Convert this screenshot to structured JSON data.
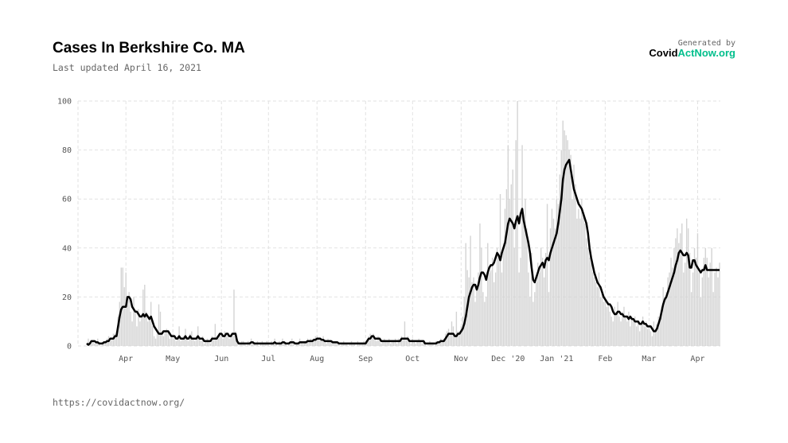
{
  "header": {
    "title": "Cases In Berkshire Co. MA",
    "subtitle": "Last updated April 16, 2021",
    "generated_by": "Generated by",
    "logo": [
      "Covid",
      "ActNow.org"
    ]
  },
  "footer": {
    "url": "https://covidactnow.org/"
  },
  "chart_data": {
    "type": "bar",
    "grid": true,
    "categories": [
      null,
      null,
      null,
      null,
      null,
      null,
      null,
      null,
      null,
      null,
      null,
      null,
      null,
      null,
      null,
      null,
      null,
      null,
      null,
      null,
      null,
      null,
      null,
      null,
      null,
      "Apr",
      null,
      null,
      null,
      null,
      null,
      null,
      null,
      null,
      null,
      null,
      null,
      null,
      null,
      null,
      null,
      null,
      null,
      null,
      null,
      null,
      null,
      null,
      null,
      null,
      null,
      null,
      null,
      null,
      null,
      "May",
      null,
      null,
      null,
      null,
      null,
      null,
      null,
      null,
      null,
      null,
      null,
      null,
      null,
      null,
      null,
      null,
      null,
      null,
      null,
      null,
      null,
      null,
      null,
      null,
      null,
      null,
      null,
      null,
      null,
      null,
      "Jun",
      null,
      null,
      null,
      null,
      null,
      null,
      null,
      null,
      null,
      null,
      null,
      null,
      null,
      null,
      null,
      null,
      null,
      null,
      null,
      null,
      null,
      null,
      null,
      null,
      null,
      null,
      null,
      null,
      null,
      "Jul",
      null,
      null,
      null,
      null,
      null,
      null,
      null,
      null,
      null,
      null,
      null,
      null,
      null,
      null,
      null,
      null,
      null,
      null,
      null,
      null,
      null,
      null,
      null,
      null,
      null,
      null,
      null,
      null,
      null,
      null,
      "Aug",
      null,
      null,
      null,
      null,
      null,
      null,
      null,
      null,
      null,
      null,
      null,
      null,
      null,
      null,
      null,
      null,
      null,
      null,
      null,
      null,
      null,
      null,
      null,
      null,
      null,
      null,
      null,
      null,
      null,
      null,
      "Sep",
      null,
      null,
      null,
      null,
      null,
      null,
      null,
      null,
      null,
      null,
      null,
      null,
      null,
      null,
      null,
      null,
      null,
      null,
      null,
      null,
      null,
      null,
      null,
      null,
      null,
      null,
      null,
      null,
      null,
      "Oct",
      null,
      null,
      null,
      null,
      null,
      null,
      null,
      null,
      null,
      null,
      null,
      null,
      null,
      null,
      null,
      null,
      null,
      null,
      null,
      null,
      null,
      null,
      null,
      null,
      null,
      null,
      null,
      null,
      null,
      null,
      "Nov",
      null,
      null,
      null,
      null,
      null,
      null,
      null,
      null,
      null,
      null,
      null,
      null,
      null,
      null,
      null,
      null,
      null,
      null,
      null,
      null,
      null,
      null,
      null,
      null,
      null,
      null,
      null,
      null,
      null,
      "Dec '20",
      null,
      null,
      null,
      null,
      null,
      null,
      null,
      null,
      null,
      null,
      null,
      null,
      null,
      null,
      null,
      null,
      null,
      null,
      null,
      null,
      null,
      null,
      null,
      null,
      null,
      null,
      null,
      null,
      null,
      null,
      "Jan '21",
      null,
      null,
      null,
      null,
      null,
      null,
      null,
      null,
      null,
      null,
      null,
      null,
      null,
      null,
      null,
      null,
      null,
      null,
      null,
      null,
      null,
      null,
      null,
      null,
      null,
      null,
      null,
      null,
      null,
      null,
      "Feb",
      null,
      null,
      null,
      null,
      null,
      null,
      null,
      null,
      null,
      null,
      null,
      null,
      null,
      null,
      null,
      null,
      null,
      null,
      null,
      null,
      null,
      null,
      null,
      null,
      null,
      null,
      null,
      "Mar",
      null,
      null,
      null,
      null,
      null,
      null,
      null,
      null,
      null,
      null,
      null,
      null,
      null,
      null,
      null,
      null,
      null,
      null,
      null,
      null,
      null,
      null,
      null,
      null,
      null,
      null,
      null,
      null,
      null,
      null,
      "Apr",
      null,
      null,
      null,
      null,
      null,
      null,
      null,
      null,
      null,
      null,
      null,
      null,
      null,
      null
    ],
    "ylim": [
      0,
      100
    ],
    "yticks": [
      0,
      20,
      40,
      60,
      80,
      100
    ],
    "series": [
      {
        "color": "#d3d3d3",
        "values": [
          0,
          3,
          1,
          1,
          2,
          1,
          2,
          3,
          1,
          0,
          1,
          2,
          1,
          3,
          4,
          2,
          3,
          5,
          5,
          6,
          12,
          18,
          32,
          32,
          24,
          30,
          18,
          22,
          14,
          10,
          20,
          14,
          8,
          15,
          10,
          12,
          23,
          25,
          14,
          10,
          12,
          18,
          8,
          4,
          3,
          5,
          17,
          14,
          6,
          4,
          6,
          7,
          6,
          3,
          4,
          5,
          3,
          2,
          4,
          8,
          2,
          3,
          4,
          7,
          3,
          2,
          5,
          6,
          3,
          2,
          4,
          8,
          3,
          2,
          4,
          1,
          2,
          3,
          2,
          1,
          4,
          3,
          9,
          4,
          3,
          5,
          4,
          3,
          6,
          4,
          5,
          3,
          5,
          4,
          23,
          6,
          3,
          0,
          1,
          2,
          2,
          1,
          0,
          2,
          1,
          3,
          2,
          1,
          1,
          2,
          0,
          1,
          2,
          1,
          1,
          2,
          1,
          0,
          2,
          1,
          3,
          1,
          0,
          2,
          1,
          3,
          2,
          1,
          0,
          1,
          2,
          3,
          2,
          0,
          1,
          1,
          3,
          2,
          1,
          2,
          2,
          3,
          2,
          3,
          2,
          3,
          4,
          4,
          3,
          3,
          2,
          4,
          2,
          1,
          3,
          2,
          2,
          1,
          2,
          2,
          1,
          1,
          0,
          1,
          2,
          1,
          1,
          0,
          1,
          2,
          1,
          1,
          0,
          2,
          1,
          1,
          1,
          2,
          1,
          2,
          4,
          5,
          4,
          5,
          3,
          2,
          4,
          3,
          1,
          2,
          3,
          2,
          2,
          3,
          1,
          2,
          2,
          3,
          1,
          3,
          2,
          4,
          3,
          10,
          3,
          4,
          2,
          1,
          3,
          2,
          1,
          2,
          3,
          2,
          1,
          2,
          1,
          0,
          1,
          2,
          1,
          1,
          0,
          2,
          1,
          2,
          3,
          2,
          3,
          5,
          6,
          7,
          5,
          10,
          8,
          4,
          14,
          6,
          5,
          8,
          12,
          20,
          42,
          31,
          28,
          45,
          26,
          28,
          18,
          24,
          30,
          50,
          40,
          22,
          18,
          20,
          42,
          30,
          31,
          36,
          26,
          30,
          40,
          36,
          62,
          30,
          42,
          56,
          64,
          82,
          60,
          66,
          72,
          40,
          84,
          100,
          30,
          36,
          82,
          50,
          60,
          48,
          30,
          20,
          38,
          18,
          22,
          26,
          34,
          30,
          40,
          36,
          28,
          38,
          58,
          22,
          48,
          56,
          52,
          48,
          60,
          58,
          70,
          80,
          92,
          88,
          86,
          84,
          80,
          78,
          60,
          74,
          66,
          52,
          56,
          52,
          60,
          54,
          50,
          44,
          40,
          36,
          34,
          30,
          28,
          26,
          24,
          30,
          20,
          22,
          18,
          20,
          16,
          18,
          14,
          12,
          10,
          16,
          14,
          18,
          12,
          10,
          14,
          16,
          12,
          10,
          14,
          8,
          12,
          10,
          12,
          8,
          10,
          6,
          10,
          12,
          8,
          10,
          7,
          8,
          6,
          4,
          10,
          7,
          9,
          12,
          10,
          16,
          24,
          20,
          22,
          28,
          30,
          36,
          32,
          40,
          44,
          48,
          42,
          46,
          50,
          30,
          34,
          52,
          48,
          38,
          22,
          30,
          40,
          36,
          46,
          30,
          20,
          28,
          36,
          40,
          36,
          28,
          34,
          40,
          22,
          30,
          32,
          28,
          34
        ]
      },
      {
        "type": "line",
        "color": "#000000",
        "values": [
          1,
          0.5,
          1,
          2,
          2,
          2,
          1.5,
          1.5,
          1,
          1,
          1,
          1.5,
          1.5,
          2,
          2,
          3,
          3,
          3,
          4,
          4,
          8,
          12,
          15,
          16,
          16,
          16,
          20,
          20,
          19,
          16,
          15,
          14,
          14,
          13,
          12,
          12,
          13,
          12,
          13,
          12,
          11,
          12,
          10,
          8,
          7,
          6,
          5,
          5,
          5,
          6,
          6,
          6,
          6,
          5,
          4,
          4,
          4,
          3,
          3,
          4,
          3,
          3,
          3,
          4,
          3,
          3,
          4,
          3,
          3,
          3,
          3,
          4,
          3,
          3,
          3,
          2,
          2,
          2,
          2,
          2,
          3,
          3,
          3,
          3,
          4,
          5,
          5,
          4,
          4,
          5,
          5,
          4,
          4,
          5,
          5,
          5,
          2,
          1,
          1,
          1,
          1,
          1,
          1,
          1,
          1,
          1.5,
          1.5,
          1,
          1,
          1,
          1,
          1,
          1,
          1,
          1,
          1,
          1,
          1,
          1,
          1,
          1.5,
          1,
          1,
          1,
          1,
          1.5,
          1.5,
          1,
          1,
          1,
          1.5,
          1.5,
          1.5,
          1,
          1,
          1,
          1.5,
          1.5,
          1.5,
          1.5,
          1.5,
          2,
          2,
          2,
          2,
          2.5,
          2.5,
          3,
          3,
          3,
          2.5,
          2.5,
          2,
          2,
          2,
          2,
          2,
          1.5,
          1.5,
          1.5,
          1.5,
          1,
          1,
          1,
          1,
          1,
          1,
          1,
          1,
          1,
          1,
          1,
          1,
          1,
          1,
          1,
          1,
          1,
          1,
          2,
          3,
          3,
          4,
          4,
          3,
          3,
          3,
          3,
          2,
          2,
          2,
          2,
          2,
          2,
          2,
          2,
          2,
          2,
          2,
          2,
          2,
          3,
          3,
          3,
          3,
          3,
          2,
          2,
          2,
          2,
          2,
          2,
          2,
          2,
          2,
          2,
          1,
          1,
          1,
          1,
          1,
          1,
          1,
          1,
          1.5,
          1.5,
          2,
          2,
          2,
          3,
          4,
          5,
          5,
          5,
          5,
          4,
          4,
          5,
          5,
          6,
          7,
          9,
          12,
          16,
          20,
          22,
          24,
          25,
          25,
          23,
          25,
          28,
          30,
          30,
          29,
          27,
          30,
          32,
          33,
          33,
          34,
          36,
          38,
          37,
          35,
          38,
          40,
          42,
          46,
          50,
          52,
          51,
          50,
          48,
          51,
          53,
          50,
          54,
          56,
          51,
          48,
          45,
          42,
          38,
          32,
          27,
          26,
          28,
          30,
          32,
          33,
          34,
          32,
          35,
          36,
          35,
          38,
          40,
          42,
          44,
          46,
          50,
          55,
          60,
          68,
          72,
          74,
          75,
          76,
          72,
          68,
          64,
          62,
          60,
          58,
          57,
          56,
          54,
          52,
          50,
          46,
          40,
          36,
          33,
          30,
          28,
          26,
          25,
          24,
          22,
          20,
          19,
          18,
          17,
          17,
          16,
          14,
          13,
          13,
          14,
          14,
          13,
          13,
          12,
          12,
          12,
          11,
          12,
          11,
          11,
          10,
          10,
          10,
          9,
          9,
          10,
          9,
          9,
          8,
          8,
          8,
          7,
          6,
          6,
          7,
          9,
          11,
          14,
          17,
          19,
          20,
          22,
          24,
          26,
          28,
          30,
          33,
          35,
          38,
          39,
          38,
          37,
          37,
          38,
          37,
          32,
          32,
          35,
          35,
          33,
          32,
          31,
          30,
          31,
          31,
          33,
          31,
          31,
          31,
          31,
          31,
          31,
          31,
          31,
          31
        ]
      }
    ]
  }
}
